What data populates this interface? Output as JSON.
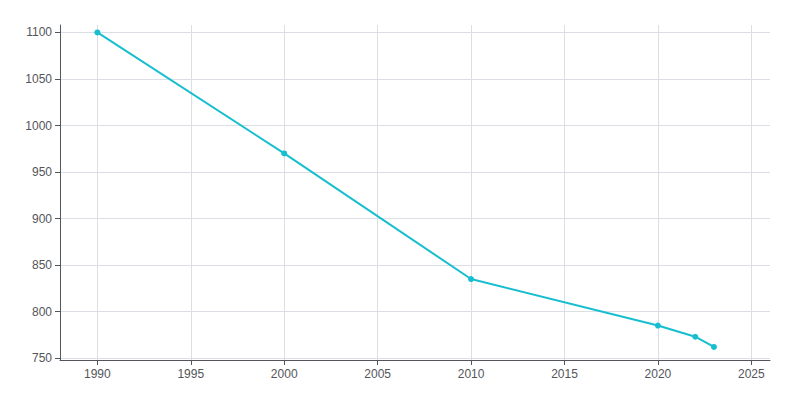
{
  "chart_data": {
    "type": "line",
    "x": [
      1990,
      2000,
      2010,
      2020,
      2022,
      2023
    ],
    "values": [
      1100,
      970,
      835,
      785,
      773,
      762
    ],
    "color": "#17becf",
    "marker": "circle",
    "xlim": [
      1988,
      2026
    ],
    "ylim": [
      748,
      1108
    ],
    "xticks": [
      1990,
      1995,
      2000,
      2005,
      2010,
      2015,
      2020,
      2025
    ],
    "yticks": [
      750,
      800,
      850,
      900,
      950,
      1000,
      1050,
      1100
    ],
    "grid": true
  }
}
